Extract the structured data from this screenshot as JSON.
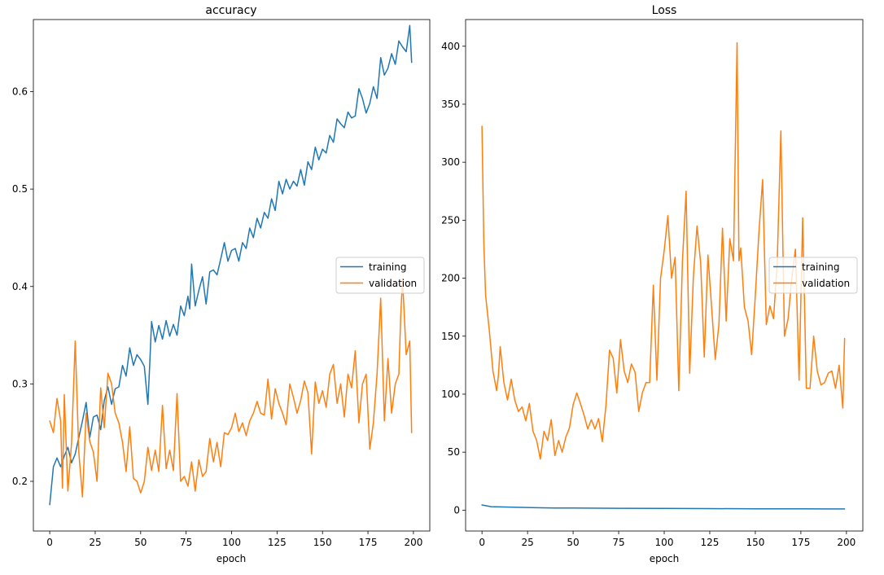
{
  "chart_data": [
    {
      "type": "line",
      "title": "accuracy",
      "xlabel": "epoch",
      "ylabel": "",
      "xlim": [
        -9,
        209
      ],
      "ylim": [
        0.149,
        0.674
      ],
      "xticks": [
        0,
        25,
        50,
        75,
        100,
        125,
        150,
        175,
        200
      ],
      "yticks": [
        0.2,
        0.3,
        0.4,
        0.5,
        0.6
      ],
      "ytick_labels": [
        "0.2",
        "0.3",
        "0.4",
        "0.5",
        "0.6"
      ],
      "legend": {
        "placement": "center-right",
        "entries": [
          "training",
          "validation"
        ]
      },
      "series": [
        {
          "name": "training",
          "color": "#1f77b4",
          "x": [
            0,
            2,
            4,
            6,
            8,
            10,
            12,
            14,
            16,
            18,
            20,
            22,
            24,
            26,
            28,
            30,
            32,
            34,
            36,
            38,
            40,
            42,
            44,
            46,
            48,
            50,
            52,
            54,
            55,
            56,
            58,
            60,
            62,
            64,
            66,
            68,
            70,
            72,
            74,
            76,
            77,
            78,
            80,
            82,
            84,
            86,
            88,
            90,
            92,
            94,
            96,
            98,
            100,
            102,
            104,
            106,
            108,
            110,
            112,
            114,
            116,
            118,
            120,
            122,
            124,
            126,
            128,
            130,
            132,
            134,
            136,
            138,
            140,
            142,
            144,
            146,
            148,
            150,
            152,
            154,
            156,
            158,
            160,
            162,
            164,
            166,
            168,
            170,
            172,
            174,
            176,
            178,
            180,
            182,
            184,
            186,
            188,
            190,
            192,
            194,
            196,
            198,
            199
          ],
          "values": [
            0.176,
            0.215,
            0.224,
            0.215,
            0.226,
            0.235,
            0.219,
            0.228,
            0.245,
            0.262,
            0.281,
            0.245,
            0.266,
            0.268,
            0.253,
            0.283,
            0.297,
            0.279,
            0.295,
            0.297,
            0.319,
            0.308,
            0.337,
            0.319,
            0.33,
            0.325,
            0.318,
            0.279,
            0.321,
            0.364,
            0.343,
            0.36,
            0.346,
            0.365,
            0.349,
            0.361,
            0.35,
            0.38,
            0.37,
            0.39,
            0.377,
            0.423,
            0.38,
            0.396,
            0.41,
            0.382,
            0.415,
            0.417,
            0.412,
            0.428,
            0.445,
            0.426,
            0.437,
            0.439,
            0.426,
            0.445,
            0.439,
            0.46,
            0.45,
            0.47,
            0.46,
            0.476,
            0.47,
            0.49,
            0.478,
            0.508,
            0.495,
            0.51,
            0.5,
            0.508,
            0.503,
            0.52,
            0.504,
            0.528,
            0.52,
            0.543,
            0.53,
            0.541,
            0.537,
            0.555,
            0.548,
            0.572,
            0.567,
            0.563,
            0.579,
            0.573,
            0.575,
            0.603,
            0.593,
            0.578,
            0.588,
            0.605,
            0.593,
            0.635,
            0.617,
            0.624,
            0.639,
            0.628,
            0.652,
            0.646,
            0.641,
            0.668,
            0.63
          ]
        },
        {
          "name": "validation",
          "color": "#ff7f0e",
          "x": [
            0,
            2,
            4,
            6,
            7,
            8,
            10,
            12,
            14,
            16,
            18,
            20,
            22,
            24,
            26,
            28,
            30,
            32,
            34,
            36,
            38,
            40,
            42,
            44,
            46,
            48,
            50,
            52,
            54,
            56,
            58,
            60,
            62,
            64,
            66,
            68,
            70,
            72,
            74,
            76,
            78,
            80,
            82,
            84,
            86,
            88,
            90,
            92,
            94,
            96,
            98,
            100,
            102,
            104,
            106,
            108,
            110,
            112,
            114,
            116,
            118,
            120,
            122,
            124,
            126,
            128,
            130,
            132,
            134,
            136,
            138,
            140,
            142,
            144,
            146,
            148,
            150,
            152,
            154,
            156,
            158,
            160,
            162,
            164,
            166,
            168,
            170,
            172,
            174,
            176,
            178,
            180,
            182,
            184,
            186,
            188,
            190,
            192,
            193,
            194,
            196,
            198,
            199
          ],
          "values": [
            0.262,
            0.25,
            0.285,
            0.262,
            0.193,
            0.289,
            0.19,
            0.239,
            0.344,
            0.23,
            0.184,
            0.27,
            0.241,
            0.23,
            0.2,
            0.296,
            0.255,
            0.311,
            0.3,
            0.27,
            0.26,
            0.24,
            0.21,
            0.256,
            0.203,
            0.2,
            0.188,
            0.2,
            0.235,
            0.211,
            0.232,
            0.21,
            0.278,
            0.213,
            0.232,
            0.211,
            0.29,
            0.2,
            0.205,
            0.195,
            0.22,
            0.19,
            0.222,
            0.205,
            0.21,
            0.244,
            0.22,
            0.24,
            0.215,
            0.25,
            0.248,
            0.255,
            0.27,
            0.251,
            0.26,
            0.247,
            0.262,
            0.27,
            0.282,
            0.27,
            0.268,
            0.305,
            0.264,
            0.295,
            0.28,
            0.27,
            0.258,
            0.3,
            0.286,
            0.27,
            0.283,
            0.303,
            0.291,
            0.228,
            0.302,
            0.28,
            0.293,
            0.276,
            0.31,
            0.32,
            0.28,
            0.3,
            0.266,
            0.31,
            0.296,
            0.334,
            0.26,
            0.3,
            0.31,
            0.233,
            0.26,
            0.31,
            0.388,
            0.262,
            0.326,
            0.27,
            0.3,
            0.31,
            0.37,
            0.408,
            0.33,
            0.344,
            0.25
          ]
        }
      ]
    },
    {
      "type": "line",
      "title": "Loss",
      "xlabel": "epoch",
      "ylabel": "",
      "xlim": [
        -9,
        209
      ],
      "ylim": [
        -18,
        423
      ],
      "xticks": [
        0,
        25,
        50,
        75,
        100,
        125,
        150,
        175,
        200
      ],
      "yticks": [
        0,
        50,
        100,
        150,
        200,
        250,
        300,
        350,
        400
      ],
      "ytick_labels": [
        "0",
        "50",
        "100",
        "150",
        "200",
        "250",
        "300",
        "350",
        "400"
      ],
      "legend": {
        "placement": "center-right",
        "entries": [
          "training",
          "validation"
        ]
      },
      "series": [
        {
          "name": "training",
          "color": "#1f77b4",
          "x": [
            0,
            5,
            10,
            20,
            30,
            40,
            50,
            75,
            100,
            125,
            150,
            175,
            199
          ],
          "values": [
            4.5,
            3.0,
            2.8,
            2.4,
            2.1,
            1.9,
            1.8,
            1.6,
            1.5,
            1.3,
            1.2,
            1.1,
            1.0
          ]
        },
        {
          "name": "validation",
          "color": "#ff7f0e",
          "x": [
            0,
            1,
            2,
            4,
            6,
            8,
            9,
            10,
            12,
            14,
            16,
            18,
            20,
            22,
            24,
            26,
            28,
            30,
            32,
            34,
            36,
            38,
            40,
            42,
            44,
            46,
            48,
            50,
            52,
            54,
            56,
            58,
            60,
            62,
            64,
            66,
            68,
            70,
            72,
            74,
            76,
            78,
            80,
            82,
            84,
            86,
            88,
            90,
            92,
            94,
            96,
            98,
            100,
            102,
            104,
            106,
            108,
            110,
            112,
            114,
            116,
            118,
            120,
            122,
            124,
            126,
            128,
            130,
            132,
            134,
            136,
            138,
            140,
            141,
            142,
            144,
            146,
            148,
            150,
            152,
            154,
            156,
            158,
            160,
            162,
            164,
            166,
            168,
            170,
            172,
            174,
            176,
            178,
            180,
            182,
            184,
            186,
            188,
            190,
            192,
            194,
            196,
            198,
            199
          ],
          "values": [
            331,
            230,
            185,
            155,
            120,
            103,
            116,
            141,
            110,
            95,
            113,
            95,
            85,
            89,
            77,
            92,
            68,
            60,
            44,
            68,
            60,
            78,
            47,
            60,
            50,
            63,
            71,
            91,
            101,
            92,
            82,
            70,
            78,
            70,
            79,
            59,
            90,
            138,
            131,
            101,
            147,
            120,
            110,
            126,
            119,
            85,
            101,
            110,
            110,
            194,
            112,
            200,
            224,
            254,
            200,
            218,
            103,
            215,
            275,
            118,
            201,
            245,
            213,
            132,
            220,
            175,
            130,
            160,
            243,
            163,
            234,
            215,
            403,
            215,
            226,
            175,
            163,
            134,
            185,
            240,
            285,
            160,
            176,
            165,
            213,
            327,
            150,
            165,
            200,
            225,
            112,
            252,
            105,
            105,
            150,
            120,
            108,
            110,
            118,
            120,
            105,
            125,
            88,
            148
          ]
        }
      ]
    }
  ]
}
